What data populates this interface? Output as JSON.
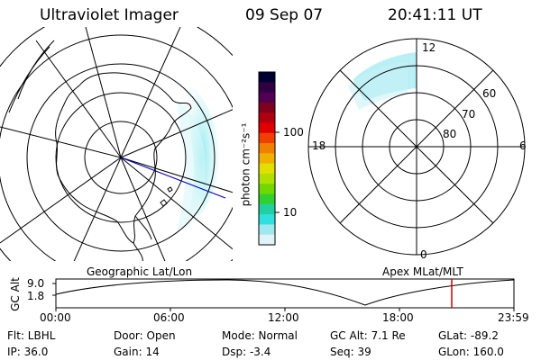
{
  "header": {
    "title": "Ultraviolet Imager",
    "date": "09 Sep 07",
    "time": "20:41:11 UT"
  },
  "colorbar": {
    "unit_label": "photon cm⁻²s⁻¹",
    "ticks": [
      "100",
      "10"
    ],
    "colors": [
      "#000030",
      "#300040",
      "#500050",
      "#800020",
      "#b00010",
      "#e00000",
      "#f04000",
      "#f08000",
      "#f0b000",
      "#e0e000",
      "#b0e000",
      "#70d800",
      "#30d030",
      "#20d0a0",
      "#30e0e0",
      "#a0e8f0",
      "#e0f4f8"
    ]
  },
  "polar_plot": {
    "mlt_labels": {
      "top": "12",
      "left": "18",
      "right": "6",
      "bottom": "0"
    },
    "lat_labels": [
      "60",
      "70",
      "80"
    ]
  },
  "timeline": {
    "ylabel": "GC Alt",
    "yticks": [
      "9.0",
      "1.8"
    ],
    "left_title": "Geographic Lat/Lon",
    "right_title": "Apex MLat/MLT",
    "xticks": [
      "00:00",
      "06:00",
      "12:00",
      "18:00",
      "23:59"
    ],
    "marker_time": "20:41",
    "marker_color": "#cc0000"
  },
  "info": {
    "filter": "Flt: LBHL",
    "ip": "IP: 36.0",
    "door": "Door: Open",
    "gain": "Gain: 14",
    "mode": "Mode: Normal",
    "dsp": "Dsp:    -3.4",
    "gc_alt": "GC Alt: 7.1 Re",
    "seq": "Seq: 39",
    "glat": "GLat: -89.2",
    "glon": "GLon: 160.0"
  }
}
